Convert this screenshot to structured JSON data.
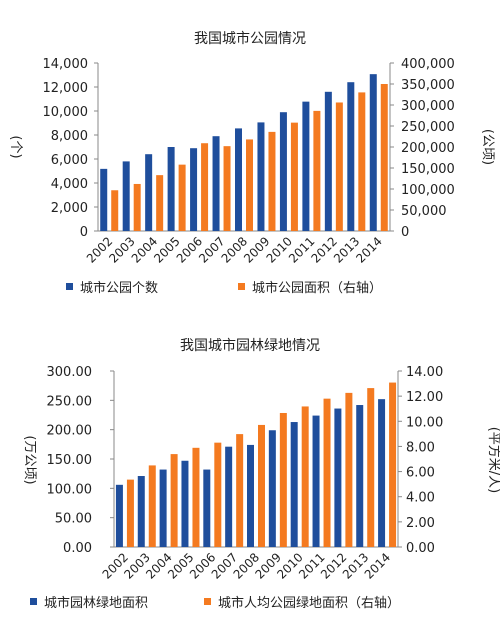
{
  "chart_data": [
    {
      "type": "bar",
      "title": "我国城市公园情况",
      "categories": [
        "2002",
        "2003",
        "2004",
        "2005",
        "2006",
        "2007",
        "2008",
        "2009",
        "2010",
        "2011",
        "2012",
        "2013",
        "2014"
      ],
      "series": [
        {
          "name": "城市公园个数",
          "axis": "left",
          "color": "#1f4e9c",
          "values": [
            5178,
            5800,
            6400,
            7000,
            6900,
            7900,
            8550,
            9050,
            9900,
            10780,
            11600,
            12400,
            13070
          ]
        },
        {
          "name": "城市公园面积（右轴）",
          "axis": "right",
          "color": "#f47a20",
          "values": [
            97000,
            112000,
            133000,
            158000,
            209000,
            202000,
            218000,
            236000,
            258000,
            286000,
            306000,
            330000,
            350000
          ]
        }
      ],
      "ylabel_left": "(个)",
      "ylabel_right": "(公顷)",
      "ylim_left": [
        0,
        14000
      ],
      "ylim_right": [
        0,
        400000
      ],
      "yticks_left": [
        "0",
        "2,000",
        "4,000",
        "6,000",
        "8,000",
        "10,000",
        "12,000",
        "14,000"
      ],
      "yticks_right": [
        "0",
        "50,000",
        "100,000",
        "150,000",
        "200,000",
        "250,000",
        "300,000",
        "350,000",
        "400,000"
      ],
      "grid": false,
      "legend_position": "bottom"
    },
    {
      "type": "bar",
      "title": "我国城市园林绿地情况",
      "categories": [
        "2002",
        "2003",
        "2004",
        "2005",
        "2006",
        "2007",
        "2008",
        "2009",
        "2010",
        "2011",
        "2012",
        "2013",
        "2014"
      ],
      "series": [
        {
          "name": "城市园林绿地面积",
          "axis": "left",
          "color": "#1f4e9c",
          "values": [
            106,
            121,
            132,
            147,
            132,
            171,
            174,
            199,
            213,
            224,
            236,
            242,
            252
          ]
        },
        {
          "name": "城市人均公园绿地面积（右轴）",
          "axis": "right",
          "color": "#f47a20",
          "values": [
            5.36,
            6.49,
            7.39,
            7.89,
            8.3,
            8.98,
            9.71,
            10.66,
            11.18,
            11.8,
            12.26,
            12.64,
            13.08
          ]
        }
      ],
      "ylabel_left": "(万公顷)",
      "ylabel_right": "(平方米/人)",
      "ylim_left": [
        0,
        300
      ],
      "ylim_right": [
        0,
        14
      ],
      "yticks_left": [
        "0.00",
        "50.00",
        "100.00",
        "150.00",
        "200.00",
        "250.00",
        "300.00"
      ],
      "yticks_right": [
        "0.00",
        "2.00",
        "4.00",
        "6.00",
        "8.00",
        "10.00",
        "12.00",
        "14.00"
      ],
      "grid": false,
      "legend_position": "bottom"
    }
  ]
}
